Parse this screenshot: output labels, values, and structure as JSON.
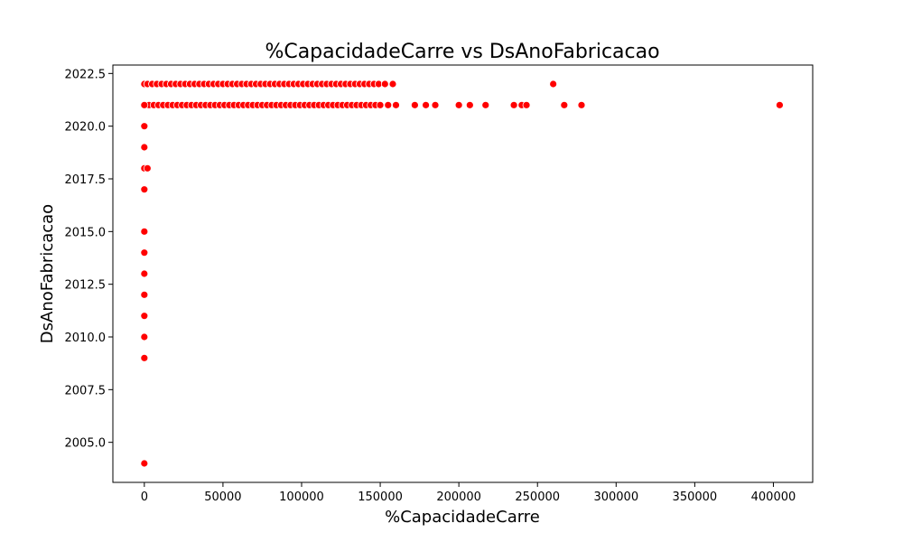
{
  "chart_data": {
    "type": "scatter",
    "title": "%CapacidadeCarre vs DsAnoFabricacao",
    "xlabel": "%CapacidadeCarre",
    "ylabel": "DsAnoFabricacao",
    "xlim": [
      -20000,
      425000
    ],
    "ylim": [
      2003.1,
      2022.9
    ],
    "xticks": [
      0,
      50000,
      100000,
      150000,
      200000,
      250000,
      300000,
      350000,
      400000
    ],
    "xtick_labels": [
      "0",
      "50000",
      "100000",
      "150000",
      "200000",
      "250000",
      "300000",
      "350000",
      "400000"
    ],
    "yticks": [
      2005.0,
      2007.5,
      2010.0,
      2012.5,
      2015.0,
      2017.5,
      2020.0,
      2022.5
    ],
    "ytick_labels": [
      "2005.0",
      "2007.5",
      "2010.0",
      "2012.5",
      "2015.0",
      "2017.5",
      "2020.0",
      "2022.5"
    ],
    "grid": false,
    "legend": null,
    "marker_color": "#ff0000",
    "series": [
      {
        "x": [
          0,
          2000,
          5000,
          8000,
          11000,
          14000,
          17000,
          20000,
          23000,
          26000,
          29000,
          32000,
          35000,
          38000,
          41000,
          44000,
          47000,
          50000,
          53000,
          56000,
          59000,
          62000,
          65000,
          68000,
          71000,
          74000,
          77000,
          80000,
          83000,
          86000,
          89000,
          92000,
          95000,
          98000,
          101000,
          104000,
          107000,
          110000,
          113000,
          116000,
          119000,
          122000,
          125000,
          128000,
          131000,
          134000,
          137000,
          140000,
          143000,
          146000,
          149000,
          153000,
          158000,
          260000,
          0,
          3000,
          6000,
          9000,
          12000,
          15000,
          18000,
          21000,
          24000,
          27000,
          30000,
          33000,
          36000,
          39000,
          42000,
          45000,
          48000,
          51000,
          54000,
          57000,
          60000,
          63000,
          66000,
          69000,
          72000,
          75000,
          78000,
          81000,
          84000,
          87000,
          90000,
          93000,
          96000,
          99000,
          102000,
          105000,
          108000,
          111000,
          114000,
          117000,
          120000,
          123000,
          126000,
          129000,
          132000,
          135000,
          138000,
          141000,
          144000,
          147000,
          150000,
          155000,
          160000,
          172000,
          179000,
          185000,
          200000,
          207000,
          217000,
          235000,
          240000,
          243000,
          267000,
          278000,
          404000,
          0,
          0,
          0,
          2000,
          0,
          0,
          0,
          0,
          0,
          0,
          0,
          0,
          0,
          0
        ],
        "y": [
          2022,
          2022,
          2022,
          2022,
          2022,
          2022,
          2022,
          2022,
          2022,
          2022,
          2022,
          2022,
          2022,
          2022,
          2022,
          2022,
          2022,
          2022,
          2022,
          2022,
          2022,
          2022,
          2022,
          2022,
          2022,
          2022,
          2022,
          2022,
          2022,
          2022,
          2022,
          2022,
          2022,
          2022,
          2022,
          2022,
          2022,
          2022,
          2022,
          2022,
          2022,
          2022,
          2022,
          2022,
          2022,
          2022,
          2022,
          2022,
          2022,
          2022,
          2022,
          2022,
          2022,
          2022,
          2021,
          2021,
          2021,
          2021,
          2021,
          2021,
          2021,
          2021,
          2021,
          2021,
          2021,
          2021,
          2021,
          2021,
          2021,
          2021,
          2021,
          2021,
          2021,
          2021,
          2021,
          2021,
          2021,
          2021,
          2021,
          2021,
          2021,
          2021,
          2021,
          2021,
          2021,
          2021,
          2021,
          2021,
          2021,
          2021,
          2021,
          2021,
          2021,
          2021,
          2021,
          2021,
          2021,
          2021,
          2021,
          2021,
          2021,
          2021,
          2021,
          2021,
          2021,
          2021,
          2021,
          2021,
          2021,
          2021,
          2021,
          2021,
          2021,
          2021,
          2021,
          2021,
          2021,
          2021,
          2021,
          2020,
          2019,
          2018,
          2018,
          2017,
          2015,
          2014,
          2013,
          2012,
          2011,
          2010,
          2009,
          2004,
          2021
        ]
      }
    ]
  }
}
